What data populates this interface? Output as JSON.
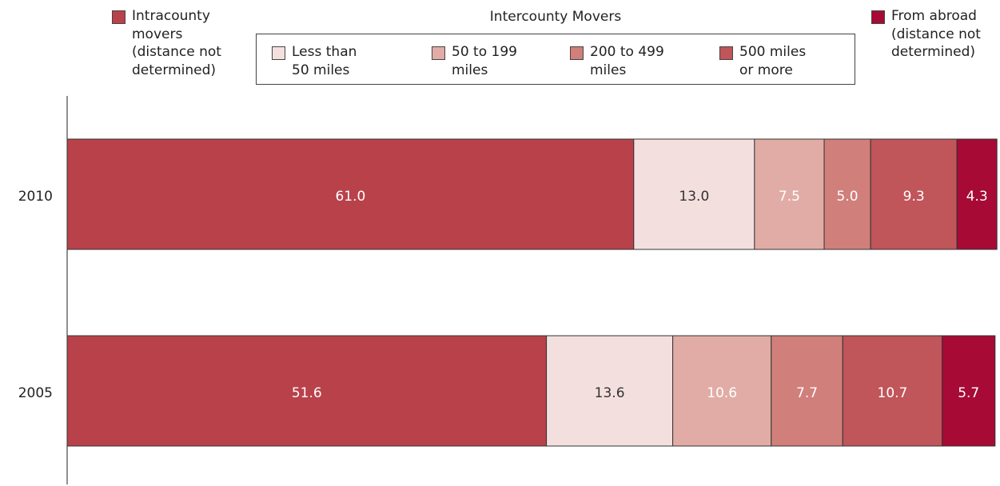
{
  "chart_data": {
    "type": "bar",
    "orientation": "horizontal",
    "stacked": true,
    "legend_group_title": "Intercounty Movers",
    "categories": [
      "2010",
      "2005"
    ],
    "xlim": [
      0,
      100
    ],
    "series": [
      {
        "name": "Intracounty movers (distance not determined)",
        "color": "#b9414a",
        "values": [
          61.0,
          51.6
        ],
        "value_labels": [
          "61.0",
          "51.6"
        ]
      },
      {
        "name": "Less than 50 miles",
        "color": "#f3e0de",
        "values": [
          13.0,
          13.6
        ],
        "value_labels": [
          "13.0",
          "13.6"
        ]
      },
      {
        "name": "50 to 199 miles",
        "color": "#e2aca6",
        "values": [
          7.5,
          10.6
        ],
        "value_labels": [
          "7.5",
          "10.6"
        ]
      },
      {
        "name": "200 to 499 miles",
        "color": "#d07f7a",
        "values": [
          5.0,
          7.7
        ],
        "value_labels": [
          "5.0",
          "7.7"
        ]
      },
      {
        "name": "500 miles or more",
        "color": "#c0555a",
        "values": [
          9.3,
          10.7
        ],
        "value_labels": [
          "9.3",
          "10.7"
        ]
      },
      {
        "name": "From abroad (distance not determined)",
        "color": "#a60a35",
        "values": [
          4.3,
          5.7
        ],
        "value_labels": [
          "4.3",
          "5.7"
        ]
      }
    ]
  }
}
